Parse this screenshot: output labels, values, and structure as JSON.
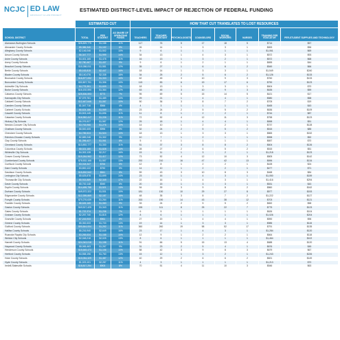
{
  "logo": {
    "left": "NCJC",
    "right": "ED LAW",
    "tagline": "ADVOCACY & LAW PROJECT"
  },
  "title": "ESTIMATED DISTRICT-LEVEL IMPACT OF REJECTION OF FEDERAL FUNDING",
  "group_headers": {
    "estimated_cut": "ESTIMATED CUT",
    "translation": "HOW THAT CUT TRANSLATES TO LOST RESOURCES"
  },
  "columns": [
    "SCHOOL DISTRICT",
    "TOTAL",
    "PER STUDENT",
    "AS SHARE OF OPERATING FUNDS",
    "TEACHERS",
    "TEACHER ASSISTANT",
    "PSYCHOLOGISTS",
    "COUNSELORS",
    "SOCIAL WORKERS",
    "NURSES",
    "TRAINING PER EDUCATOR",
    "PER-STUDENT SUPPLIES AND TECHNOLOGY"
  ],
  "rows": [
    [
      "Alamance-Burlington Schools",
      "$26,829,775",
      "$1,158",
      "11%",
      "117",
      "76",
      "5",
      "17",
      "18",
      "5",
      "$714",
      "$57"
    ],
    [
      "Alexander County Schools",
      "$5,386,340",
      "$1,102",
      "8%",
      "26",
      "14",
      "1",
      "3",
      "3",
      "1",
      "$653",
      "$56"
    ],
    [
      "Alleghany County Schools",
      "$2,146,046",
      "$1,502",
      "10%",
      "9",
      "6",
      "1",
      "1",
      "1",
      "1",
      "$1,061",
      "$69"
    ],
    [
      "Anson County Schools",
      "$6,347,777",
      "$1,999",
      "14%",
      "34",
      "13",
      "1",
      "4",
      "3",
      "1",
      "$572",
      "$93"
    ],
    [
      "Ashe County Schools",
      "$4,401,165",
      "$1,478",
      "11%",
      "16",
      "13",
      "1",
      "3",
      "2",
      "1",
      "$572",
      "$68"
    ],
    [
      "Avery County Schools",
      "$2,780,467",
      "$1,437",
      "9%",
      "9",
      "6",
      "1",
      "2",
      "1",
      "1",
      "$655",
      "$44"
    ],
    [
      "Beaufort County Schools",
      "$10,086,911",
      "$1,581",
      "12%",
      "35",
      "27",
      "1",
      "6",
      "6",
      "2",
      "$549",
      "$66"
    ],
    [
      "Bertie County Schools",
      "$5,163,815",
      "$2,447",
      "16%",
      "18",
      "14",
      "1",
      "3",
      "3",
      "1",
      "$1,549",
      "$240"
    ],
    [
      "Bladen County Schools",
      "$8,140,076",
      "$2,338",
      "18%",
      "34",
      "25",
      "2",
      "5",
      "6",
      "2",
      "$1,126",
      "$133"
    ],
    [
      "Brunswick County Schools",
      "$16,877,092",
      "$1,333",
      "10%",
      "62",
      "45",
      "3",
      "10",
      "9",
      "3",
      "$760",
      "$133"
    ],
    [
      "Buncombe County Schools",
      "$32,807,701",
      "$1,306",
      "10%",
      "115",
      "83",
      "6",
      "19",
      "17",
      "6",
      "$790",
      "$123"
    ],
    [
      "Asheville City Schools",
      "$4,775,391",
      "$1,609",
      "7%",
      "18",
      "13",
      "1",
      "3",
      "3",
      "1",
      "$604",
      "$70"
    ],
    [
      "Burke County Schools",
      "$16,192,590",
      "$1,364",
      "12%",
      "63",
      "45",
      "3",
      "10",
      "9",
      "3",
      "$635",
      "$59"
    ],
    [
      "Cabarrus County Schools",
      "$25,506,593",
      "$773",
      "7%",
      "95",
      "69",
      "5",
      "15",
      "14",
      "5",
      "$421",
      "$17"
    ],
    [
      "Kannapolis City Schools",
      "$7,079,761",
      "$1,489",
      "10%",
      "29",
      "21",
      "1",
      "4",
      "4",
      "1",
      "$580",
      "$58"
    ],
    [
      "Caldwell County Schools",
      "$12,467,646",
      "$1,087",
      "10%",
      "50",
      "36",
      "3",
      "8",
      "7",
      "2",
      "$705",
      "$19"
    ],
    [
      "Camden County Schools",
      "$1,047,716",
      "$566",
      "4%",
      "4",
      "3",
      "1",
      "1",
      "1",
      "1",
      "$465",
      "$43"
    ],
    [
      "Carteret County Schools",
      "$6,624,186",
      "$1,069",
      "8%",
      "23",
      "24",
      "2",
      "5",
      "5",
      "2",
      "$636",
      "$109"
    ],
    [
      "Caswell County Schools",
      "$3,503,145",
      "$1,696",
      "11%",
      "11",
      "8",
      "1",
      "2",
      "2",
      "1",
      "$744",
      "$87"
    ],
    [
      "Catawba County Schools",
      "$16,952,417",
      "$1,226",
      "11%",
      "72",
      "52",
      "4",
      "12",
      "11",
      "3",
      "$758",
      "$123"
    ],
    [
      "Hickory City Schools",
      "$6,076,527",
      "$1,587",
      "12%",
      "25",
      "18",
      "1",
      "4",
      "4",
      "1",
      "$658",
      "$51"
    ],
    [
      "Newton-Conover City Schools",
      "$3,763,966",
      "$1,276",
      "10%",
      "14",
      "10",
      "1",
      "2",
      "2",
      "1",
      "$737",
      "$128"
    ],
    [
      "Chatham County Schools",
      "$8,500,405",
      "$996",
      "8%",
      "32",
      "24",
      "2",
      "5",
      "5",
      "2",
      "$515",
      "$85"
    ],
    [
      "Cherokee County Schools",
      "$4,785,524",
      "$1,524",
      "10%",
      "18",
      "13",
      "1",
      "3",
      "3",
      "1",
      "$865",
      "$152"
    ],
    [
      "Edenton-Chowan County Schools",
      "$2,889,248",
      "$1,302",
      "9%",
      "10",
      "7",
      "1",
      "2",
      "1",
      "1",
      "$598",
      "$52"
    ],
    [
      "Clay County Schools",
      "$1,396,427",
      "$1,061",
      "8%",
      "5",
      "4",
      "1",
      "1",
      "1",
      "1",
      "$657",
      "$70"
    ],
    [
      "Cleveland County Schools",
      "$13,892,777",
      "$1,330",
      "11%",
      "51",
      "37",
      "3",
      "8",
      "8",
      "2",
      "$604",
      "$126"
    ],
    [
      "Columbus County Schools",
      "$8,021,180",
      "$1,828",
      "14%",
      "28",
      "27",
      "2",
      "6",
      "5",
      "2",
      "$515",
      "$51"
    ],
    [
      "Whiteville City Schools",
      "$4,302,128",
      "$2,217",
      "16%",
      "15",
      "11",
      "1",
      "3",
      "2",
      "1",
      "$1,218",
      "$123"
    ],
    [
      "Craven County Schools",
      "$19,264,962",
      "$1,417",
      "12%",
      "73",
      "52",
      "4",
      "12",
      "10",
      "3",
      "$805",
      "$142"
    ],
    [
      "Cumberland County Schools",
      "$78,532,168",
      "$1,557",
      "13%",
      "292",
      "210",
      "16",
      "47",
      "42",
      "13",
      "$696",
      "$134"
    ],
    [
      "Currituck County Schools",
      "$3,018,347",
      "$764",
      "5%",
      "12",
      "8",
      "1",
      "2",
      "2",
      "1",
      "$428",
      "$24"
    ],
    [
      "Dare County Schools",
      "$3,800,122",
      "$750",
      "5%",
      "14",
      "10",
      "1",
      "2",
      "2",
      "1",
      "$477",
      "$71"
    ],
    [
      "Davidson County Schools",
      "$15,832,542",
      "$841",
      "8%",
      "59",
      "43",
      "3",
      "10",
      "8",
      "3",
      "$468",
      "$84"
    ],
    [
      "Lexington City Schools",
      "$5,625,878",
      "$1,699",
      "14%",
      "23",
      "16",
      "1",
      "4",
      "3",
      "1",
      "$1,050",
      "$159"
    ],
    [
      "Thomasville City Schools",
      "$5,915,889",
      "$2,349",
      "17%",
      "22",
      "16",
      "1",
      "4",
      "3",
      "1",
      "$1,416",
      "$294"
    ],
    [
      "Davie County Schools",
      "$5,700,148",
      "$949",
      "8%",
      "20",
      "15",
      "1",
      "3",
      "3",
      "1",
      "$531",
      "$43"
    ],
    [
      "Duplin County Schools",
      "$14,455,758",
      "$1,521",
      "13%",
      "54",
      "39",
      "3",
      "9",
      "8",
      "2",
      "$860",
      "$162"
    ],
    [
      "Durham County Schools",
      "$49,572,322",
      "$1,531",
      "10%",
      "181",
      "130",
      "10",
      "29",
      "27",
      "8",
      "$577",
      "$153"
    ],
    [
      "Edgecombe County Schools",
      "$12,395,869",
      "$2,187",
      "16%",
      "48",
      "35",
      "3",
      "8",
      "7",
      "2",
      "$1,222",
      "$127"
    ],
    [
      "Forsyth County Schools",
      "$70,276,639",
      "$1,264",
      "11%",
      "263",
      "190",
      "14",
      "43",
      "38",
      "12",
      "$703",
      "$121"
    ],
    [
      "Franklin County Schools",
      "$8,626,165",
      "$1,083",
      "9%",
      "33",
      "24",
      "2",
      "5",
      "5",
      "2",
      "$652",
      "$58"
    ],
    [
      "Gaston County Schools",
      "$40,517,425",
      "$1,343",
      "11%",
      "155",
      "111",
      "8",
      "25",
      "22",
      "7",
      "$775",
      "$123"
    ],
    [
      "Gates County Schools",
      "$1,722,374",
      "$1,236",
      "7%",
      "6",
      "5",
      "1",
      "1",
      "1",
      "1",
      "$626",
      "$104"
    ],
    [
      "Graham County Schools",
      "$2,257,740",
      "$1,815",
      "12%",
      "8",
      "6",
      "1",
      "1",
      "1",
      "1",
      "$1,026",
      "$204"
    ],
    [
      "Granville County Schools",
      "$7,243,933",
      "$961",
      "8%",
      "27",
      "20",
      "1",
      "4",
      "4",
      "1",
      "$590",
      "$96"
    ],
    [
      "Greene County Schools",
      "$5,352,633",
      "$1,720",
      "13%",
      "19",
      "14",
      "1",
      "3",
      "3",
      "1",
      "$985",
      "$115"
    ],
    [
      "Guilford County Schools",
      "$90,844,004",
      "$1,292",
      "11%",
      "360",
      "260",
      "19",
      "58",
      "52",
      "17",
      "$791",
      "$135"
    ],
    [
      "Halifax County Schools",
      "$6,216,940",
      "$2,649",
      "16%",
      "23",
      "17",
      "1",
      "4",
      "3",
      "1",
      "$1,284",
      "$120"
    ],
    [
      "Roanoke Rapids City Schools",
      "$3,265,634",
      "$1,158",
      "10%",
      "12",
      "9",
      "1",
      "2",
      "2",
      "1",
      "$664",
      "$118"
    ],
    [
      "Weldon City Schools",
      "$2,048,218",
      "$2,025",
      "13%",
      "8",
      "6",
      "1",
      "1",
      "1",
      "1",
      "$1,464",
      "$102"
    ],
    [
      "Harnett County Schools",
      "$24,343,018",
      "$1,198",
      "11%",
      "91",
      "66",
      "5",
      "15",
      "13",
      "4",
      "$688",
      "$120"
    ],
    [
      "Haywood County Schools",
      "$8,065,463",
      "$1,267",
      "9%",
      "31",
      "23",
      "2",
      "5",
      "4",
      "1",
      "$676",
      "$45"
    ],
    [
      "Henderson County Schools",
      "$15,645,473",
      "$1,106",
      "10%",
      "58",
      "42",
      "3",
      "9",
      "8",
      "3",
      "$679",
      "$67"
    ],
    [
      "Hertford County Schools",
      "$4,558,196",
      "$1,760",
      "13%",
      "15",
      "12",
      "1",
      "3",
      "2",
      "1",
      "$1,243",
      "$226"
    ],
    [
      "Hoke County Schools",
      "$10,054,329",
      "$1,487",
      "12%",
      "40",
      "29",
      "2",
      "6",
      "6",
      "2",
      "$821",
      "$149"
    ],
    [
      "Hyde County Schools",
      "$1,023,101",
      "$2,287",
      "11%",
      "4",
      "3",
      "1",
      "1",
      "1",
      "1",
      "$1,213",
      "$70"
    ],
    [
      "Iredell-Statesville Schools",
      "$18,817,254",
      "$903",
      "8%",
      "70",
      "51",
      "4",
      "11",
      "10",
      "3",
      "$546",
      "$63"
    ]
  ]
}
